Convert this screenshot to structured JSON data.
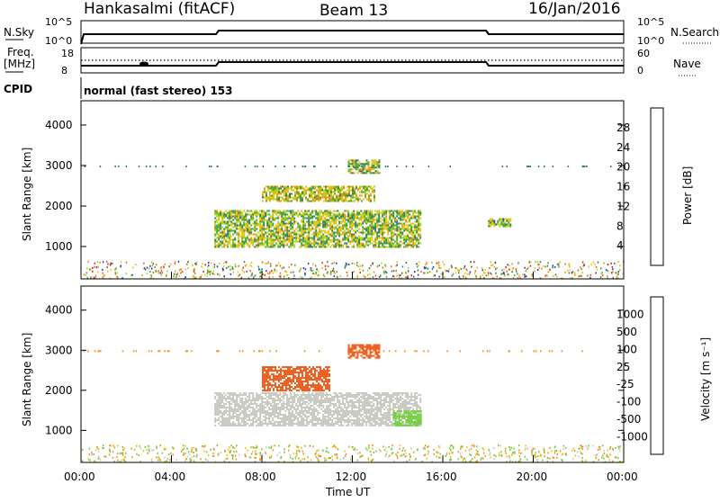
{
  "header": {
    "station": "Hankasalmi (fitACF)",
    "beam": "Beam 13",
    "date": "16/Jan/2016"
  },
  "aux_panels": {
    "nsky_label": "N.Sky",
    "nsearch_label": "N.Search",
    "freq_label_1": "Freq.",
    "freq_label_2": "[MHz]",
    "nave_label": "Nave",
    "cpid_label": "CPID",
    "cpid_text": "normal (fast stereo) 153",
    "nsky_ticks": [
      "10^5",
      "10^0"
    ],
    "nsearch_ticks": [
      "10^5",
      "10^0"
    ],
    "freq_ticks": [
      "18",
      "8"
    ],
    "nave_ticks": [
      "60",
      "0"
    ]
  },
  "colors": {
    "power": [
      "#0a1aff",
      "#1f3ec4",
      "#2f7f5a",
      "#4aa832",
      "#b3d21c",
      "#f2c10c",
      "#f09019",
      "#ef5a1a",
      "#e81e12"
    ],
    "velocity": [
      "#e81e12",
      "#ef5a1a",
      "#f09019",
      "#f2c10c",
      "#c8c8c0",
      "#c8c8c0",
      "#6fcf3a",
      "#3a9a4a",
      "#2a5fb0",
      "#1a3fc8"
    ]
  },
  "chart_data": [
    {
      "type": "heatmap",
      "panel": "power",
      "ylabel": "Slant Range [km]",
      "colorbar_label": "Power [dB]",
      "colorbar_ticks": [
        "4",
        "8",
        "12",
        "16",
        "20",
        "24",
        "28"
      ],
      "colorbar_range": [
        0,
        30
      ],
      "xlim_hours": [
        0,
        24
      ],
      "ylim": [
        200,
        4600
      ],
      "y_ticks": [
        "1000",
        "2000",
        "3000",
        "4000"
      ],
      "regions": [
        {
          "t_start": 5.9,
          "t_end": 15.0,
          "range_start": 1000,
          "range_end": 1900,
          "value": 14
        },
        {
          "t_start": 8.0,
          "t_end": 13.0,
          "range_start": 2100,
          "range_end": 2500,
          "value": 16
        },
        {
          "t_start": 11.8,
          "t_end": 13.2,
          "range_start": 2800,
          "range_end": 3150,
          "value": 14
        },
        {
          "t_start": 18.0,
          "t_end": 19.0,
          "range_start": 1500,
          "range_end": 1700,
          "value": 12
        }
      ]
    },
    {
      "type": "heatmap",
      "panel": "velocity",
      "ylabel": "Slant Range [km]",
      "colorbar_label": "Velocity [m s⁻¹]",
      "colorbar_ticks": [
        "-1000",
        "-500",
        "-100",
        "-25",
        "25",
        "100",
        "500",
        "1000"
      ],
      "xlim_hours": [
        0,
        24
      ],
      "ylim": [
        200,
        4600
      ],
      "y_ticks": [
        "1000",
        "2000",
        "3000",
        "4000"
      ],
      "regions": [
        {
          "t_start": 5.9,
          "t_end": 15.0,
          "range_start": 1100,
          "range_end": 1950,
          "value": 0
        },
        {
          "t_start": 8.0,
          "t_end": 11.0,
          "range_start": 2000,
          "range_end": 2600,
          "value": -300
        },
        {
          "t_start": 11.8,
          "t_end": 13.2,
          "range_start": 2800,
          "range_end": 3150,
          "value": -200
        },
        {
          "t_start": 13.8,
          "t_end": 15.0,
          "range_start": 1100,
          "range_end": 1500,
          "value": 60
        }
      ]
    }
  ],
  "x_axis": {
    "label": "Time UT",
    "ticks": [
      "00:00",
      "04:00",
      "08:00",
      "12:00",
      "16:00",
      "20:00",
      "00:00"
    ]
  }
}
